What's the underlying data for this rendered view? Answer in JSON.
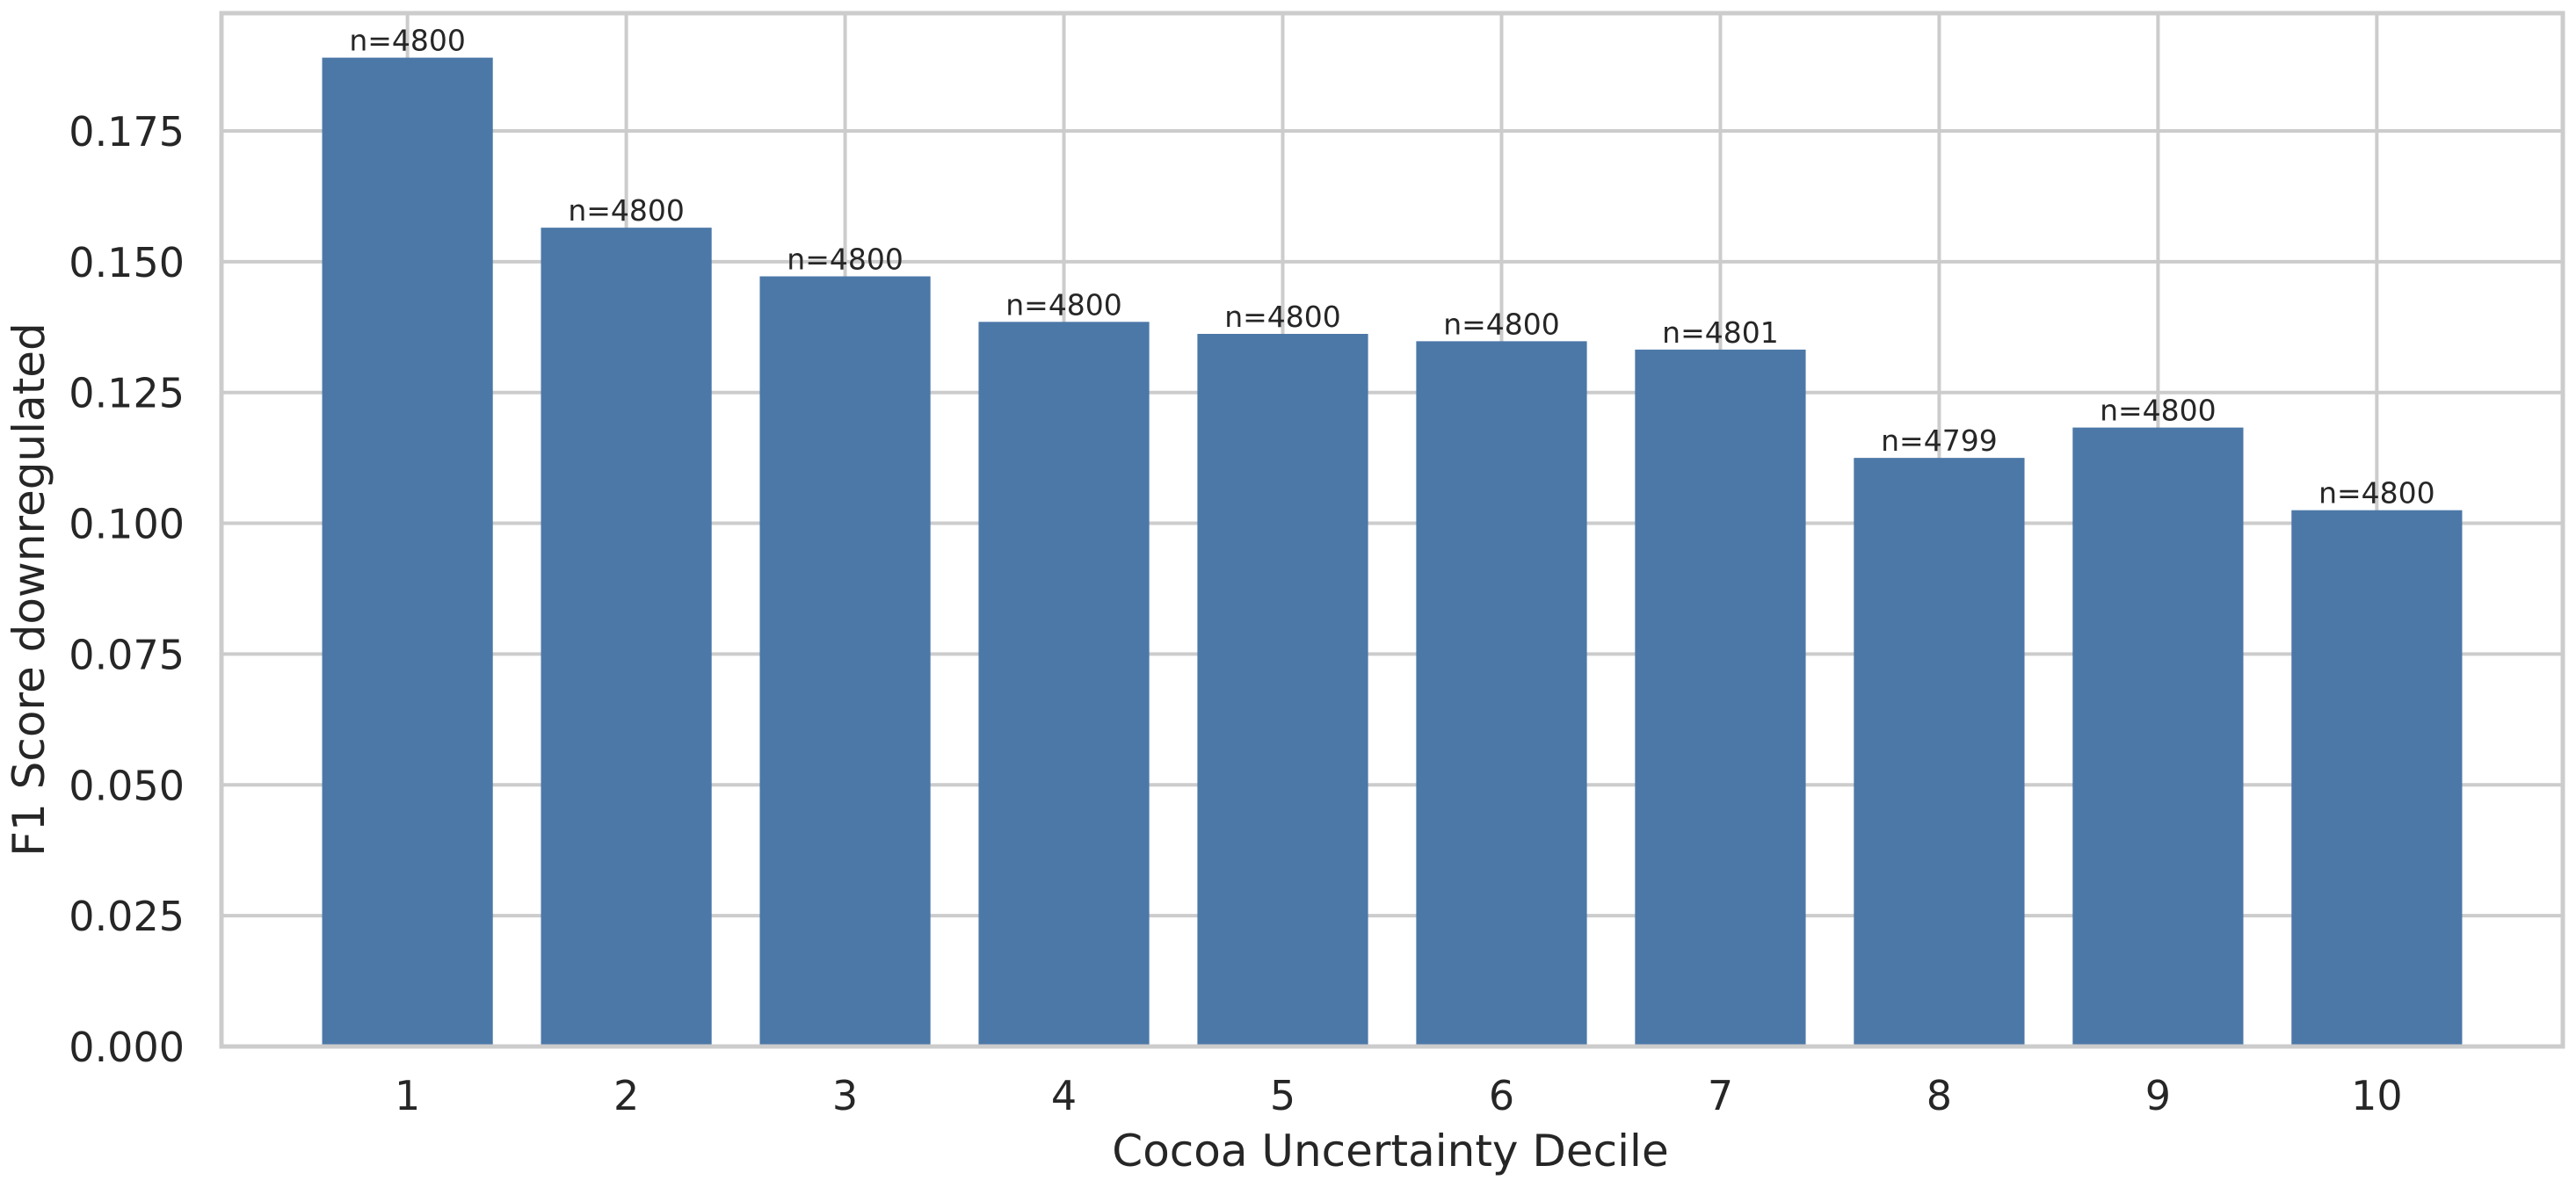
{
  "chart_data": {
    "type": "bar",
    "title": "",
    "xlabel": "Cocoa Uncertainty Decile",
    "ylabel": "F1 Score downregulated",
    "categories": [
      "1",
      "2",
      "3",
      "4",
      "5",
      "6",
      "7",
      "8",
      "9",
      "10"
    ],
    "values": [
      0.189,
      0.1565,
      0.1472,
      0.1385,
      0.1362,
      0.1348,
      0.1332,
      0.1125,
      0.1183,
      0.1025
    ],
    "annotations": [
      "n=4800",
      "n=4800",
      "n=4800",
      "n=4800",
      "n=4800",
      "n=4800",
      "n=4801",
      "n=4799",
      "n=4800",
      "n=4800"
    ],
    "ylim": [
      0,
      0.1975
    ],
    "yticks": [
      0.0,
      0.025,
      0.05,
      0.075,
      0.1,
      0.125,
      0.15,
      0.175
    ],
    "ytick_labels": [
      "0.000",
      "0.025",
      "0.050",
      "0.075",
      "0.100",
      "0.125",
      "0.150",
      "0.175"
    ],
    "grid": true,
    "colors": {
      "bar": "#4c78a8",
      "grid": "#cccccc",
      "frame": "#cccccc",
      "text": "#262626"
    }
  }
}
